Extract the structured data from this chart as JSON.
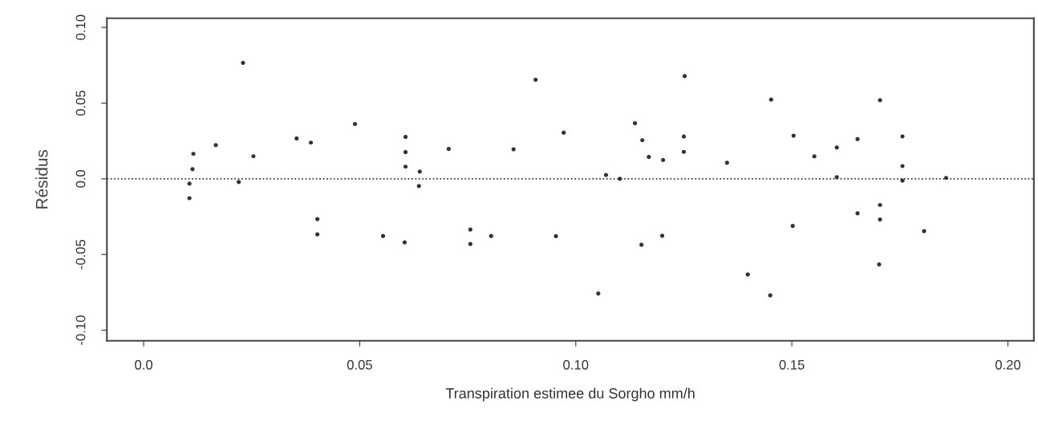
{
  "chart_data": {
    "type": "scatter",
    "xlabel": "Transpiration estimee du Sorgho mm/h",
    "ylabel": "Résidus",
    "x": [
      0.023,
      0.0106,
      0.0106,
      0.0113,
      0.0115,
      0.0167,
      0.022,
      0.0254,
      0.0354,
      0.0387,
      0.0402,
      0.0402,
      0.0489,
      0.0554,
      0.0606,
      0.0606,
      0.0606,
      0.0604,
      0.0639,
      0.0637,
      0.0706,
      0.0756,
      0.0756,
      0.0804,
      0.0856,
      0.0907,
      0.0954,
      0.0972,
      0.1052,
      0.107,
      0.1102,
      0.1137,
      0.1154,
      0.1169,
      0.1202,
      0.12,
      0.1152,
      0.1252,
      0.125,
      0.125,
      0.135,
      0.1452,
      0.1398,
      0.145,
      0.1504,
      0.1502,
      0.1552,
      0.1604,
      0.1604,
      0.1652,
      0.1652,
      0.1704,
      0.1704,
      0.1704,
      0.1702,
      0.1756,
      0.1756,
      0.1756,
      0.1806,
      0.1857
    ],
    "series": [
      {
        "color": "#333333",
        "values": [
          0.0766,
          -0.0032,
          -0.0128,
          0.0064,
          0.0165,
          0.0223,
          -0.0021,
          0.0149,
          0.0266,
          0.0239,
          -0.0266,
          -0.0367,
          0.0362,
          -0.0378,
          0.0277,
          0.0176,
          0.008,
          -0.042,
          0.0048,
          -0.0048,
          0.0197,
          -0.0335,
          -0.0431,
          -0.0378,
          0.0195,
          0.0654,
          -0.0379,
          0.0305,
          -0.0758,
          0.0025,
          0.0,
          0.0367,
          0.0255,
          0.0144,
          0.0124,
          -0.0376,
          -0.0436,
          0.0678,
          0.0279,
          0.0178,
          0.0106,
          0.0523,
          -0.0632,
          -0.077,
          0.0285,
          -0.0311,
          0.0148,
          0.0207,
          0.0011,
          0.0262,
          -0.0228,
          0.0519,
          -0.0173,
          -0.0269,
          -0.0566,
          0.028,
          0.0084,
          -0.0012,
          -0.0346,
          0.0006
        ]
      }
    ],
    "marker": "circle",
    "xlim": [
      -0.0085,
      0.206
    ],
    "ylim": [
      -0.107,
      0.106
    ],
    "xticks": [
      {
        "value": 0,
        "label": "0.0"
      },
      0.05,
      {
        "value": 0.1,
        "label": "0.10"
      },
      0.15,
      {
        "value": 0.2,
        "label": "0.20"
      }
    ],
    "yticks": [
      {
        "value": -0.1,
        "label": "-0.10"
      },
      -0.05,
      {
        "value": 0,
        "label": "0.0"
      },
      0.05,
      {
        "value": 0.1,
        "label": "0.10"
      }
    ],
    "ref_lines": [
      {
        "axis": "y",
        "value": 0,
        "line_style": "dotted",
        "color": "#333333"
      }
    ],
    "grid": false,
    "legend": false
  }
}
